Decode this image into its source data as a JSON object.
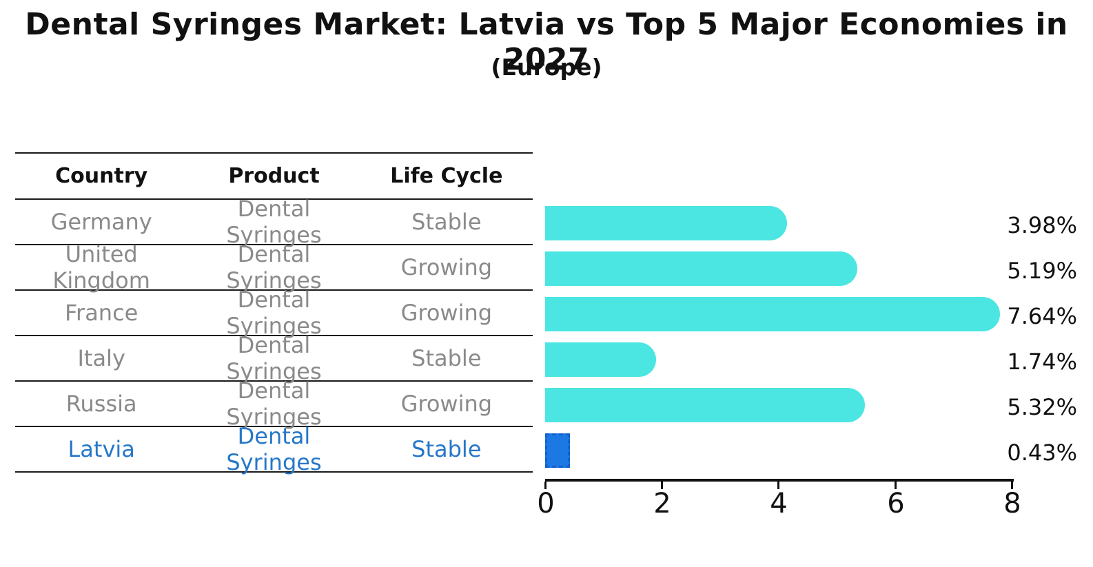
{
  "title": "Dental Syringes Market: Latvia vs Top 5 Major Economies in 2027",
  "subtitle": "(Europe)",
  "table": {
    "headers": [
      "Country",
      "Product",
      "Life Cycle"
    ],
    "rows": [
      {
        "country": "Germany",
        "product": "Dental Syringes",
        "life_cycle": "Stable",
        "highlight": false
      },
      {
        "country": "United Kingdom",
        "product": "Dental Syringes",
        "life_cycle": "Growing",
        "highlight": false
      },
      {
        "country": "France",
        "product": "Dental Syringes",
        "life_cycle": "Growing",
        "highlight": false
      },
      {
        "country": "Italy",
        "product": "Dental Syringes",
        "life_cycle": "Stable",
        "highlight": false
      },
      {
        "country": "Russia",
        "product": "Dental Syringes",
        "life_cycle": "Growing",
        "highlight": true
      },
      {
        "country": "Latvia",
        "product": "Dental Syringes",
        "life_cycle": "Stable",
        "highlight": true
      }
    ]
  },
  "chart_data": {
    "type": "bar",
    "orientation": "horizontal",
    "title": "Dental Syringes Market: Latvia vs Top 5 Major Economies in 2027",
    "subtitle": "(Europe)",
    "categories": [
      "Germany",
      "United Kingdom",
      "France",
      "Italy",
      "Russia",
      "Latvia"
    ],
    "values": [
      3.98,
      5.19,
      7.64,
      1.74,
      5.32,
      0.43
    ],
    "value_labels": [
      "3.98%",
      "5.19%",
      "7.64%",
      "1.74%",
      "5.32%",
      "0.43%"
    ],
    "xlim": [
      0,
      8
    ],
    "xticks": [
      0,
      2,
      4,
      6,
      8
    ],
    "grid": false,
    "legend": "none",
    "highlight_index": 5,
    "bar_color": "#4BE6E2",
    "highlight_bar_color": "#1C78E3",
    "highlight_border_color": "#1261CE",
    "highlight_text_color": "#2577C9",
    "muted_text_color": "#8a8a8a"
  }
}
